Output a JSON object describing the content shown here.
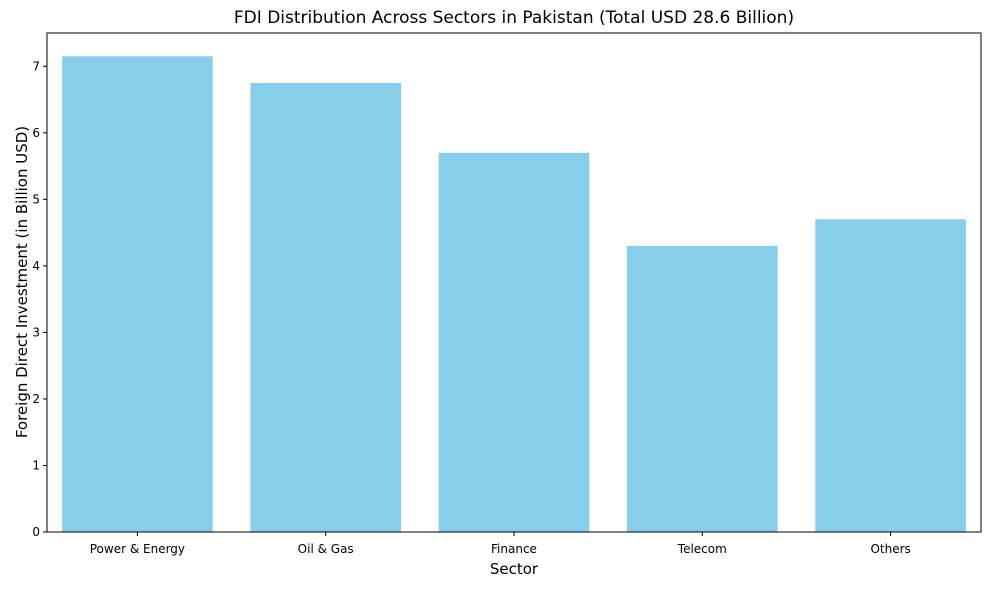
{
  "chart_data": {
    "type": "bar",
    "title": "FDI Distribution Across Sectors in Pakistan (Total USD 28.6 Billion)",
    "xlabel": "Sector",
    "ylabel": "Foreign Direct Investment (in Billion USD)",
    "categories": [
      "Power & Energy",
      "Oil & Gas",
      "Finance",
      "Telecom",
      "Others"
    ],
    "values": [
      7.15,
      6.75,
      5.7,
      4.3,
      4.7
    ],
    "yticks": [
      0,
      1,
      2,
      3,
      4,
      5,
      6,
      7
    ],
    "ylim": [
      0,
      7.5
    ],
    "bar_color": "#87CEEB",
    "grid": false,
    "legend": null
  }
}
